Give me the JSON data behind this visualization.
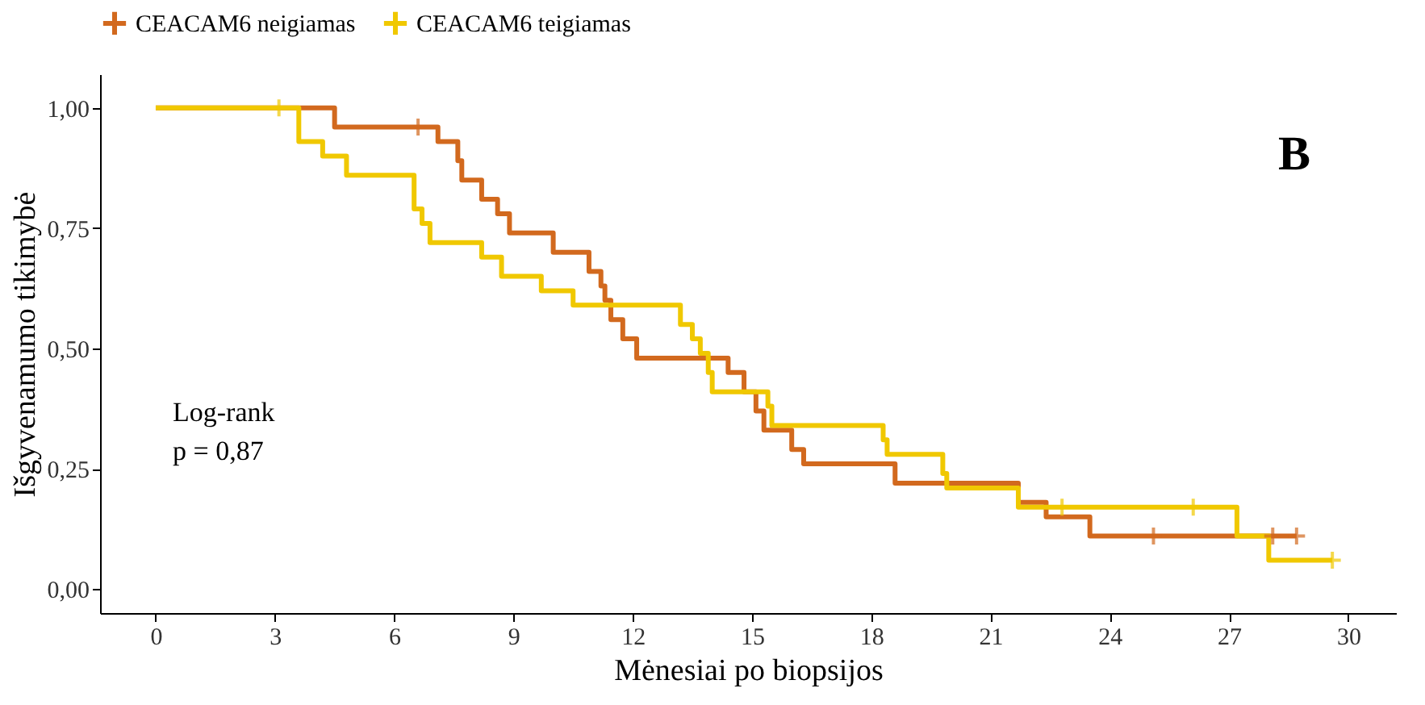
{
  "chart_data": {
    "type": "step",
    "xlabel": "Mėnesiai po biopsijos",
    "ylabel": "Išgyvenamumo tikimybė",
    "annotations": [
      "B",
      "Log-rank\np = 0,87"
    ],
    "legend": "top",
    "grid": false,
    "line_style": "solid",
    "xlim": [
      -1.4,
      31.2
    ],
    "xticks": [
      0,
      3,
      6,
      9,
      12,
      15,
      18,
      21,
      24,
      27,
      30
    ],
    "ylim": [
      -0.05,
      1.07
    ],
    "yticks": [
      {
        "value": 0,
        "label": "0,00"
      },
      {
        "value": 0.25,
        "label": "0,25"
      },
      {
        "value": 0.5,
        "label": "0,50"
      },
      {
        "value": 0.75,
        "label": "0,75"
      },
      {
        "value": 1,
        "label": "1,00"
      }
    ],
    "series": [
      {
        "name": "CEACAM6 neigiamas",
        "color": "#d2691e",
        "x": [
          0,
          4.5,
          7.1,
          7.6,
          7.7,
          8.2,
          8.6,
          8.9,
          10.0,
          10.9,
          11.2,
          11.3,
          11.45,
          11.75,
          12.1,
          14.4,
          14.8,
          15.1,
          15.3,
          16.0,
          16.3,
          18.6,
          21.7,
          22.4,
          23.5,
          28.7
        ],
        "values": [
          1.0,
          0.96,
          0.93,
          0.89,
          0.85,
          0.81,
          0.78,
          0.74,
          0.7,
          0.66,
          0.63,
          0.6,
          0.56,
          0.52,
          0.48,
          0.45,
          0.41,
          0.37,
          0.33,
          0.29,
          0.26,
          0.22,
          0.18,
          0.15,
          0.11,
          0.11
        ]
      },
      {
        "name": "CEACAM6 teigiamas",
        "color": "#f0c800",
        "x": [
          0,
          3.6,
          4.2,
          4.8,
          6.5,
          6.7,
          6.9,
          8.2,
          8.7,
          9.7,
          10.5,
          13.2,
          13.5,
          13.7,
          13.9,
          14.0,
          15.4,
          15.5,
          18.3,
          18.4,
          19.8,
          19.9,
          21.7,
          27.2,
          28.0,
          29.6
        ],
        "values": [
          1.0,
          0.93,
          0.9,
          0.86,
          0.79,
          0.76,
          0.72,
          0.69,
          0.65,
          0.62,
          0.59,
          0.55,
          0.52,
          0.49,
          0.45,
          0.41,
          0.38,
          0.34,
          0.31,
          0.28,
          0.24,
          0.21,
          0.17,
          0.11,
          0.06,
          0.06
        ]
      },
      {
        "color": "#d2691e",
        "type": "scatter",
        "marker": "cross",
        "x": [
          6.6,
          25.1,
          28.1,
          28.7
        ],
        "values": [
          0.96,
          0.11,
          0.11,
          0.11
        ]
      },
      {
        "color": "#f0c800",
        "type": "scatter",
        "marker": "cross",
        "x": [
          3.1,
          22.8,
          26.1,
          29.6
        ],
        "values": [
          1.0,
          0.17,
          0.17,
          0.06
        ]
      }
    ]
  }
}
